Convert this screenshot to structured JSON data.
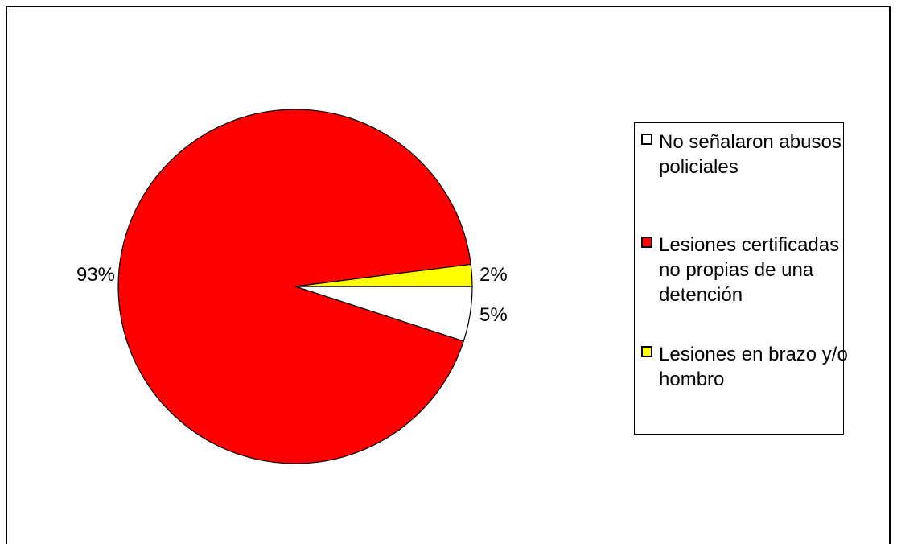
{
  "chart_data": {
    "type": "pie",
    "slices": [
      {
        "label": "No señalaron abusos policiales",
        "value": 5,
        "value_label": "5%",
        "color": "#ffffff"
      },
      {
        "label": "Lesiones certificadas no propias de una detención",
        "value": 93,
        "value_label": "93%",
        "color": "#ff0000"
      },
      {
        "label": "Lesiones en brazo y/o hombro",
        "value": 2,
        "value_label": "2%",
        "color": "#ffff00"
      }
    ],
    "legend_position": "right"
  }
}
